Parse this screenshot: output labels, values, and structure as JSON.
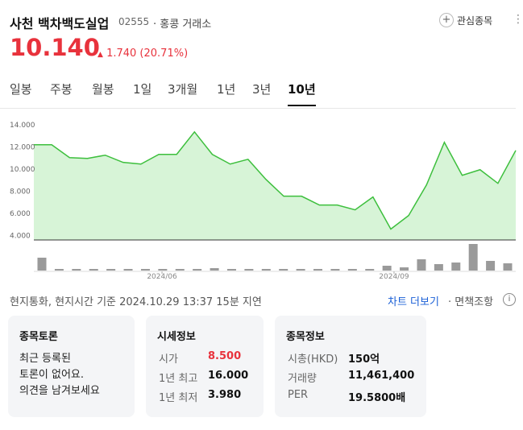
{
  "header": {
    "name": "사천 백차백도실업",
    "code": "02555",
    "exchange": "· 홍콩 거래소",
    "watch": "관심종목"
  },
  "price": {
    "current": "10.140",
    "change": "1.740",
    "change_pct": "(20.71%)"
  },
  "tabs": [
    "일봉",
    "주봉",
    "월봉",
    "1일",
    "3개월",
    "1년",
    "3년",
    "10년"
  ],
  "chart_data": {
    "type": "line",
    "categories": [
      null,
      null,
      null,
      null,
      null,
      null,
      null,
      "2024/06",
      null,
      null,
      null,
      null,
      null,
      null,
      null,
      null,
      null,
      null,
      null,
      null,
      "2024/09",
      null,
      null,
      null,
      null,
      null,
      null,
      null
    ],
    "values": [
      12.19,
      12.19,
      11.03,
      10.96,
      11.25,
      10.6,
      10.45,
      11.32,
      11.32,
      13.35,
      11.32,
      10.45,
      10.88,
      9.07,
      7.55,
      7.55,
      6.75,
      6.75,
      6.32,
      7.48,
      4.58,
      5.81,
      8.57,
      12.41,
      9.43,
      9.94,
      8.71,
      11.68
    ],
    "color": "#3dbf3d",
    "fill": "#d7f4d7",
    "volumes": [
      16,
      2,
      2,
      2,
      2,
      2,
      2,
      2,
      2,
      2,
      3,
      2,
      2,
      2,
      2,
      2,
      2,
      2,
      2,
      2,
      6,
      4,
      14,
      8,
      10,
      33,
      12,
      9
    ],
    "volume_color": "#9a9a9a",
    "ylim": [
      3.6,
      14.5
    ],
    "yticks": [
      {
        "value": 4,
        "label": "4.000"
      },
      {
        "value": 6,
        "label": "6.000"
      },
      {
        "value": 8,
        "label": "8.000"
      },
      {
        "value": 10,
        "label": "10.000"
      },
      {
        "value": 12,
        "label": "12.000"
      },
      {
        "value": 14,
        "label": "14.000"
      }
    ],
    "y2lim": [
      0,
      35
    ],
    "grid": false
  },
  "footer": {
    "note": "현지통화, 현지시간 기준 2024.10.29 13:37 15분 지연",
    "more": "차트 더보기",
    "disclaimer": "· 면책조항"
  },
  "cards": {
    "discussion": {
      "title": "종목토론",
      "lines": [
        "최근 등록된",
        "토론이 없어요.",
        "의견을 남겨보세요"
      ]
    },
    "quote": {
      "title": "시세정보",
      "rows": [
        [
          "시가",
          "8.500"
        ],
        [
          "1년 최고",
          "16.000"
        ],
        [
          "1년 최저",
          "3.980"
        ]
      ]
    },
    "info": {
      "title": "종목정보",
      "rows": [
        [
          "시총(HKD)",
          "150억"
        ],
        [
          "거래량",
          "11,461,400"
        ],
        [
          "PER",
          "19.5800배"
        ]
      ]
    }
  }
}
